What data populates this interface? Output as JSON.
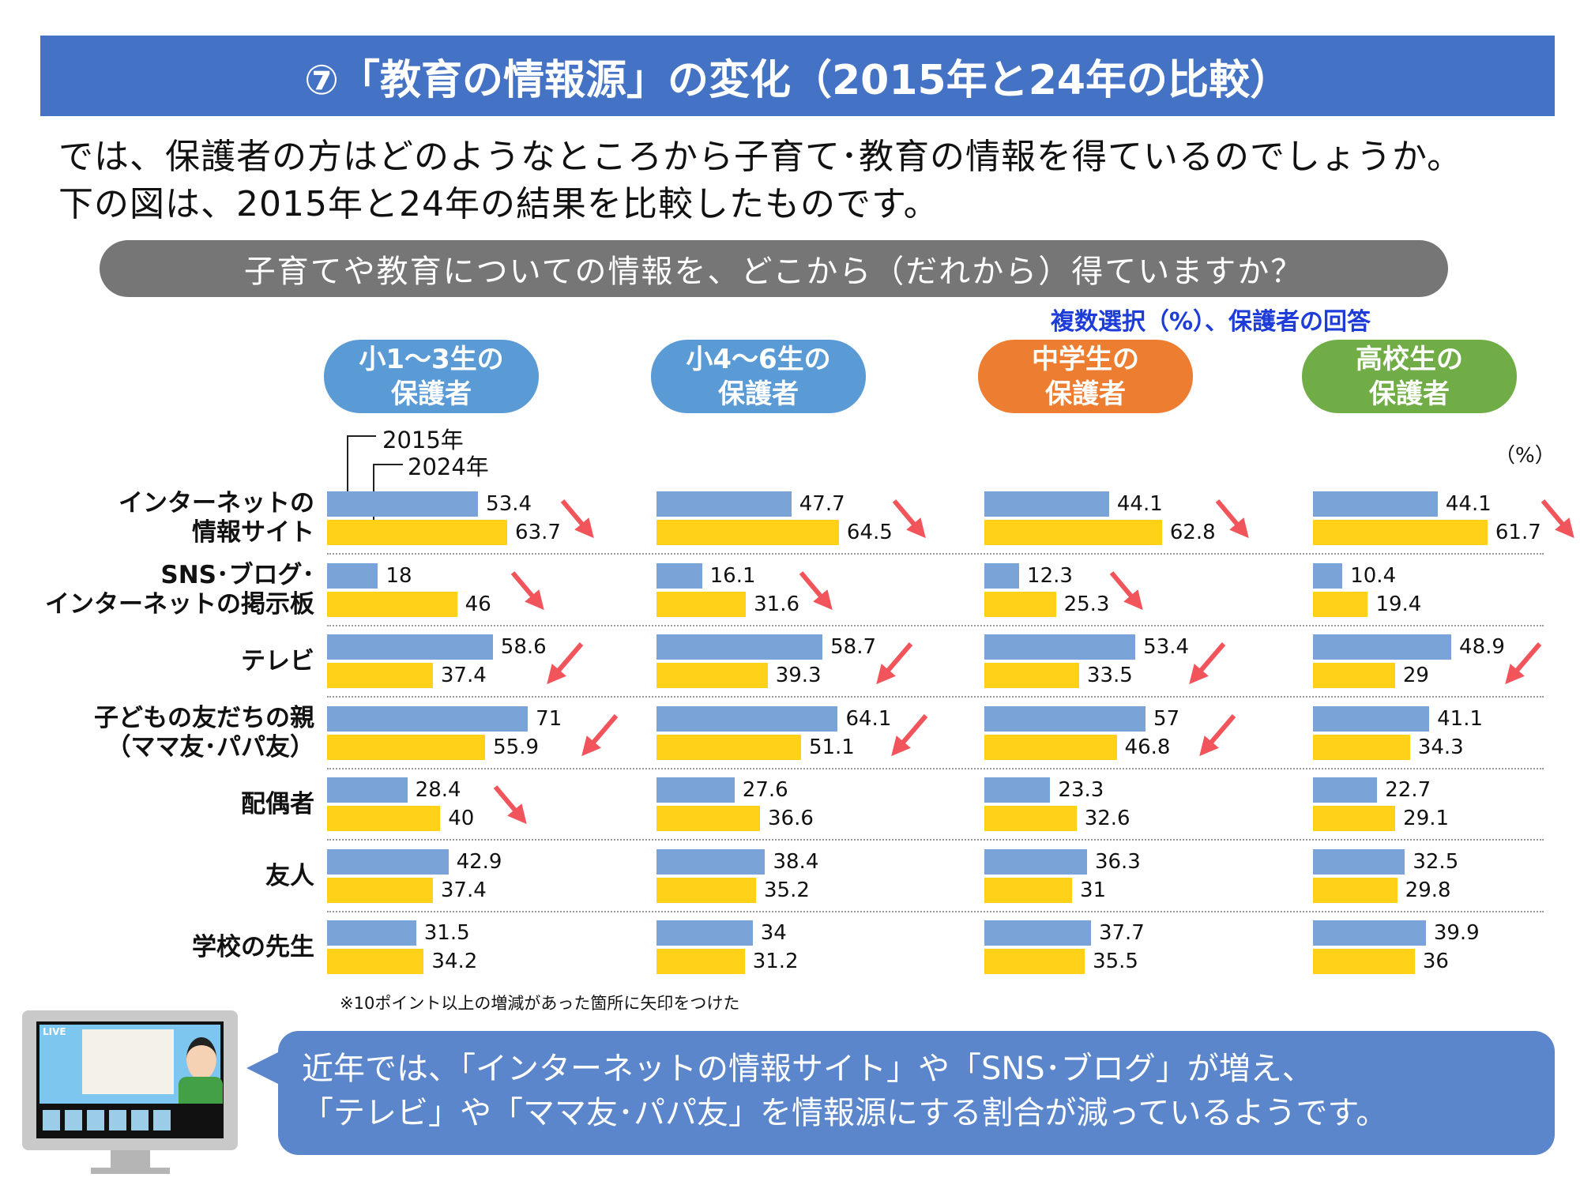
{
  "title": "⑦「教育の情報源」の変化（2015年と24年の比較）",
  "intro": [
    "では、保護者の方はどのようなところから子育て･教育の情報を得ているのでしょうか。",
    "下の図は、2015年と24年の結果を比較したものです。"
  ],
  "question": "子育てや教育についての情報を、どこから（だれから）得ていますか？",
  "note_top": "複数選択（%）、保護者の回答",
  "unit": "（%）",
  "footnote": "※10ポイント以上の増減があった箇所に矢印をつけた",
  "bubble": [
    "近年では、「インターネットの情報サイト」や「SNS･ブログ」が増え、",
    "「テレビ」や「ママ友･パパ友」を情報源にする割合が減っているようです。"
  ],
  "monitor": {
    "live_label": "LIVE"
  },
  "colors": {
    "y2015": "#7aa3d8",
    "y2024": "#ffd119",
    "arrow": "#f2545b",
    "title_bg": "#4472c4"
  },
  "chart_data": {
    "type": "bar",
    "orientation": "horizontal",
    "legend": [
      "2015年",
      "2024年"
    ],
    "categories": [
      "インターネットの\n情報サイト",
      "SNS･ブログ･\nインターネットの掲示板",
      "テレビ",
      "子どもの友だちの親\n（ママ友･パパ友）",
      "配偶者",
      "友人",
      "学校の先生"
    ],
    "groups": [
      {
        "name": "小1～3生の\n保護者",
        "color": "#5b9bd5",
        "y2015": [
          53.4,
          18.0,
          58.6,
          71.0,
          28.4,
          42.9,
          31.5
        ],
        "y2024": [
          63.7,
          46.0,
          37.4,
          55.9,
          40.0,
          37.4,
          34.2
        ],
        "arrows": [
          true,
          true,
          true,
          true,
          true,
          false,
          false
        ]
      },
      {
        "name": "小4～6生の\n保護者",
        "color": "#5b9bd5",
        "y2015": [
          47.7,
          16.1,
          58.7,
          64.1,
          27.6,
          38.4,
          34.0
        ],
        "y2024": [
          64.5,
          31.6,
          39.3,
          51.1,
          36.6,
          35.2,
          31.2
        ],
        "arrows": [
          true,
          true,
          true,
          true,
          false,
          false,
          false
        ]
      },
      {
        "name": "中学生の\n保護者",
        "color": "#ed7d31",
        "y2015": [
          44.1,
          12.3,
          53.4,
          57.0,
          23.3,
          36.3,
          37.7
        ],
        "y2024": [
          62.8,
          25.3,
          33.5,
          46.8,
          32.6,
          31.0,
          35.5
        ],
        "arrows": [
          true,
          true,
          true,
          true,
          false,
          false,
          false
        ]
      },
      {
        "name": "高校生の\n保護者",
        "color": "#70ad47",
        "y2015": [
          44.1,
          10.4,
          48.9,
          41.1,
          22.7,
          32.5,
          39.9
        ],
        "y2024": [
          61.7,
          19.4,
          29.0,
          34.3,
          29.1,
          29.8,
          36.0
        ],
        "arrows": [
          true,
          false,
          true,
          false,
          false,
          false,
          false
        ]
      }
    ]
  }
}
